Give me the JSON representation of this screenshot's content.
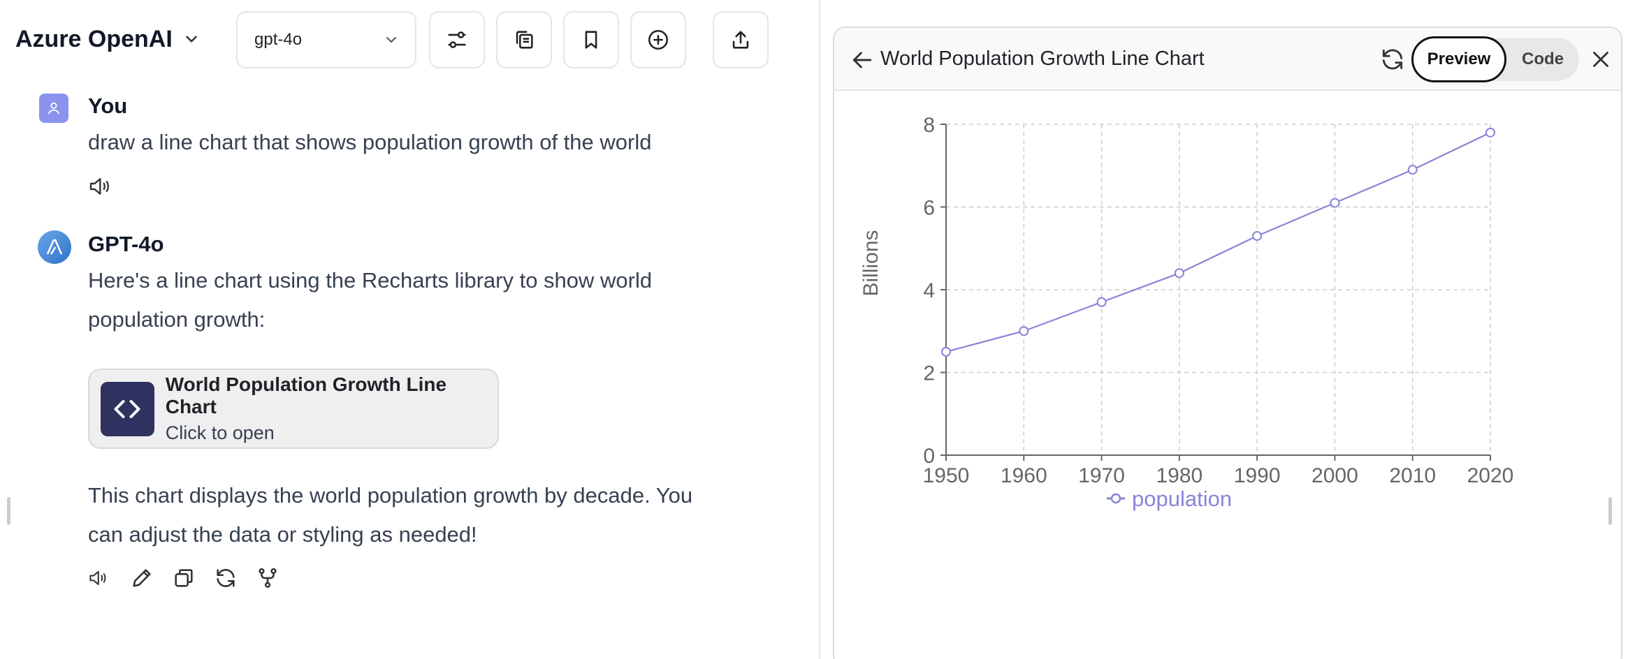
{
  "header": {
    "endpoint_label": "Azure OpenAI",
    "model_value": "gpt-4o",
    "buttons": [
      "sliders-icon",
      "copy-icon",
      "bookmark-icon",
      "plus-circle-icon",
      "share-icon"
    ]
  },
  "conversation": {
    "user": {
      "author": "You",
      "text": "draw a line chart that shows population growth of the world"
    },
    "assistant": {
      "author": "GPT-4o",
      "intro_line1": "Here's a line chart using the Recharts library to show world",
      "intro_line2": "population growth:",
      "artifact_title": "World Population Growth Line Chart",
      "artifact_sub": "Click to open",
      "outro_line1": "This chart displays the world population growth by decade. You",
      "outro_line2": "can adjust the data or styling as needed!"
    }
  },
  "panel": {
    "title": "World Population Growth Line Chart",
    "preview_label": "Preview",
    "code_label": "Code"
  },
  "colors": {
    "line": "#8884d8",
    "artifact_icon_bg": "#2f3160",
    "user_avatar": "#8b93ef"
  },
  "chart_data": {
    "type": "line",
    "x": [
      1950,
      1960,
      1970,
      1980,
      1990,
      2000,
      2010,
      2020
    ],
    "series": [
      {
        "name": "population",
        "values": [
          2.5,
          3.0,
          3.7,
          4.4,
          5.3,
          6.1,
          6.9,
          7.8
        ]
      }
    ],
    "ylabel": "Billions",
    "ylim": [
      0,
      8
    ],
    "yticks": [
      0,
      2,
      4,
      6,
      8
    ],
    "grid": true,
    "legend": "bottom"
  }
}
